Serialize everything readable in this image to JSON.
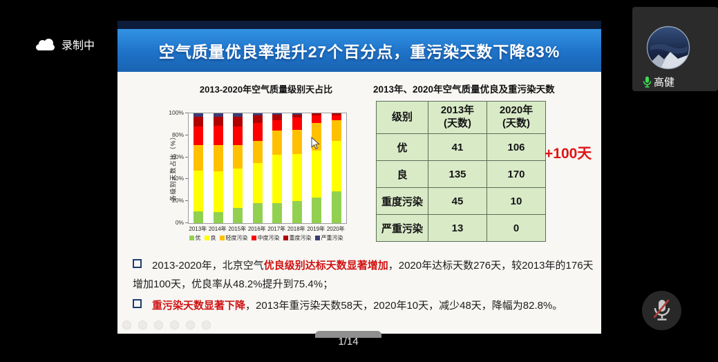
{
  "meeting": {
    "recording_label": "录制中",
    "participant": {
      "name": "高健"
    },
    "page_indicator": "1/14"
  },
  "slide": {
    "banner_title": "空气质量优良率提升27个百分点，重污染天数下降83%",
    "bullets": [
      {
        "pre": "2013-2020年，北京空气",
        "highlight": "优良级别达标天数显著增加",
        "post": "，2020年达标天数276天，较2013年的176天增加100天，优良率从48.2%提升到75.4%；"
      },
      {
        "pre": "",
        "highlight": "重污染天数显著下降",
        "post": "，2013年重污染天数58天，2020年10天，减少48天，降幅为82.8%。"
      }
    ],
    "table": {
      "title": "2013年、2020年空气质量优良及重污染天数",
      "headers": [
        "级别",
        "2013年\n(天数)",
        "2020年\n(天数)"
      ],
      "rows": [
        [
          "优",
          "41",
          "106"
        ],
        [
          "良",
          "135",
          "170"
        ],
        [
          "重度污染",
          "45",
          "10"
        ],
        [
          "严重污染",
          "13",
          "0"
        ]
      ],
      "annotation": "+100天"
    }
  },
  "chart_data": {
    "type": "bar",
    "stacked": true,
    "title": "2013-2020年空气质量级别天占比",
    "xlabel": "",
    "ylabel": "各级别天数占比（%）",
    "ylim": [
      0,
      100
    ],
    "yticks": [
      "0%",
      "20%",
      "40%",
      "60%",
      "80%",
      "100%"
    ],
    "legend_position": "bottom",
    "grid": false,
    "categories": [
      "2013年",
      "2014年",
      "2015年",
      "2016年",
      "2017年",
      "2018年",
      "2019年",
      "2020年"
    ],
    "series": [
      {
        "name": "优",
        "color": "#92d050",
        "values": [
          11,
          10,
          14,
          18,
          18,
          20,
          23,
          29
        ]
      },
      {
        "name": "良",
        "color": "#ffff00",
        "values": [
          37,
          37,
          36,
          37,
          44,
          43,
          43,
          46
        ]
      },
      {
        "name": "轻度污染",
        "color": "#ffc000",
        "values": [
          23,
          24,
          21,
          20,
          22,
          22,
          25,
          19
        ]
      },
      {
        "name": "中度污染",
        "color": "#fe0000",
        "values": [
          17,
          18,
          17,
          16,
          10,
          11,
          7,
          4
        ]
      },
      {
        "name": "重度污染",
        "color": "#b00000",
        "values": [
          9,
          8,
          9,
          7,
          5,
          3,
          2,
          2
        ]
      },
      {
        "name": "严重污染",
        "color": "#3c3c74",
        "values": [
          3,
          3,
          3,
          2,
          1,
          1,
          0,
          0
        ]
      }
    ]
  },
  "colors": {
    "banner_blue": "#1e72c8",
    "table_cell_green": "#d9eac7",
    "highlight_red": "#d01212",
    "annotation_red": "#e01515",
    "mic_active_green": "#3ddc55",
    "mute_slash_red": "#b23a38"
  },
  "icons": {
    "cloud": "cloud-icon",
    "mic_on": "microphone-on-icon",
    "mic_muted": "microphone-muted-icon"
  }
}
